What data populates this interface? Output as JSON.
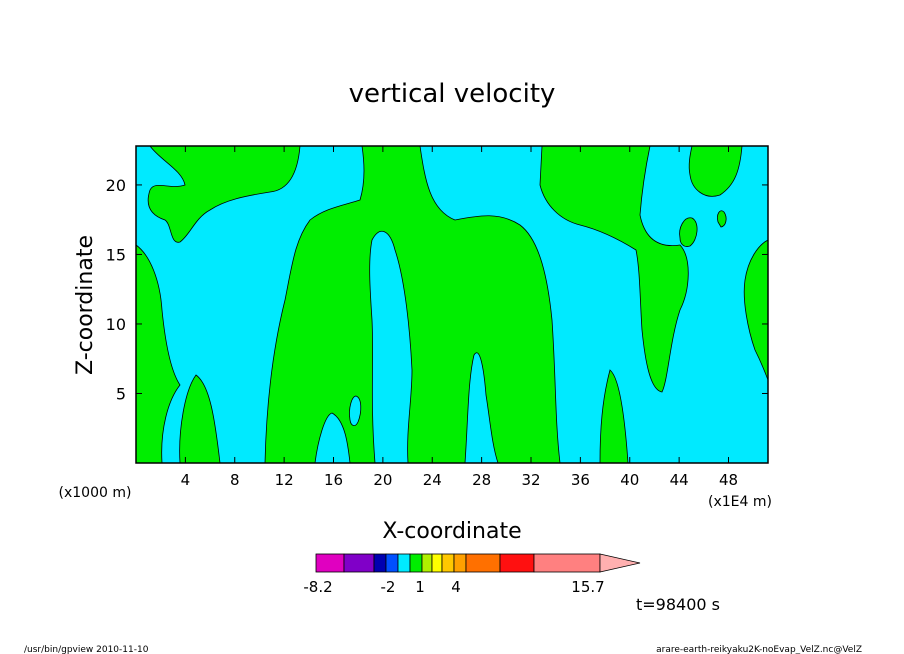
{
  "chart_data": {
    "type": "heatmap",
    "title": "vertical velocity",
    "xlabel": "X-coordinate",
    "ylabel": "Z-coordinate",
    "x_unit_left": "(x1000 m)",
    "x_unit_right": "(x1E4 m)",
    "xlim": [
      0,
      51.2
    ],
    "ylim": [
      0,
      22.8
    ],
    "xticks": [
      4,
      8,
      12,
      16,
      20,
      24,
      28,
      32,
      36,
      40,
      44,
      48
    ],
    "yticks": [
      5,
      10,
      15,
      20
    ],
    "background_value_color": "#00eaff",
    "positive_value_color": "#00ee00",
    "colorbar": {
      "colors": [
        "#e000c0",
        "#8000c8",
        "#0000b0",
        "#0050ff",
        "#00eaff",
        "#00ee00",
        "#b0f000",
        "#ffff00",
        "#ffc800",
        "#ffa000",
        "#ff7000",
        "#ff1010",
        "#ff8080",
        "#ffb0b0"
      ],
      "labels": [
        "-8.2",
        "-2",
        "1",
        "4",
        "15.7"
      ]
    },
    "time_label": "t=98400 s"
  },
  "footer": {
    "left": "/usr/bin/gpview   2010-11-10",
    "right": "arare-earth-reikyaku2K-noEvap_VelZ.nc@VelZ"
  }
}
